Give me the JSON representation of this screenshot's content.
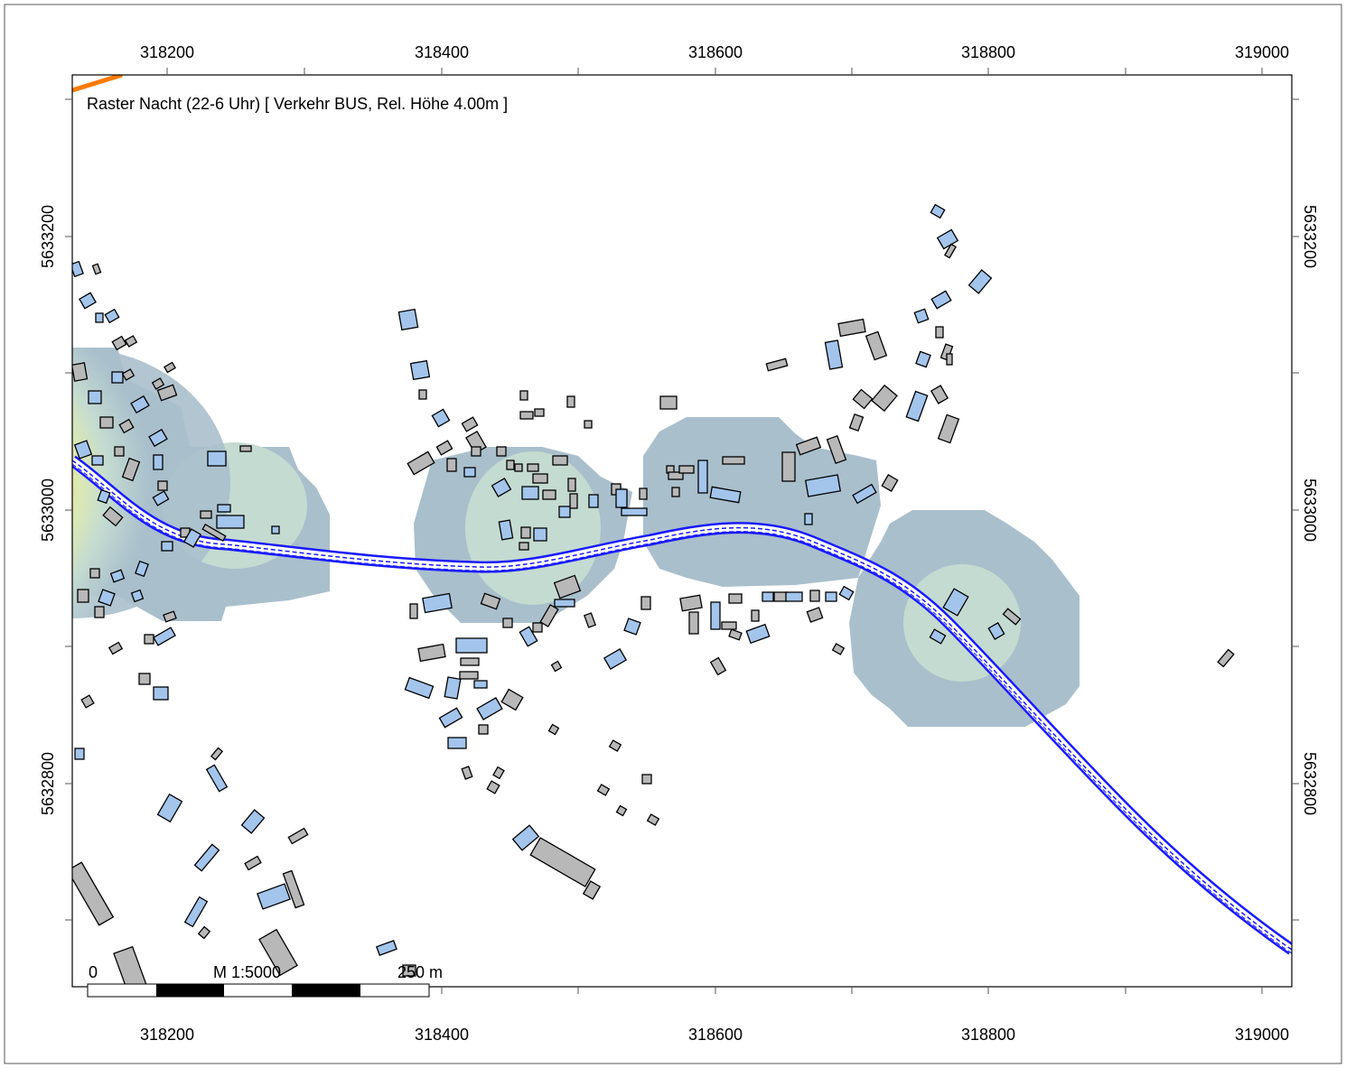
{
  "map": {
    "title": "Raster Nacht (22-6 Uhr)  [ Verkehr BUS, Rel. Höhe  4.00m ]",
    "x_ticks": [
      "318200",
      "318400",
      "318600",
      "318800",
      "319000"
    ],
    "y_ticks": [
      "5633200",
      "5633000",
      "5632800"
    ],
    "scalebar": {
      "start_label": "0",
      "scale_label": "M 1:5000",
      "end_label": "250 m"
    },
    "colors": {
      "road": "#1a1aff",
      "building_blue": "#a3c5ec",
      "building_gray": "#b8b8b8",
      "raster_low": "#a9bfcc",
      "raster_mid": "#c4dbd1",
      "raster_high": "#e6efb0",
      "raster_peak": "#6d1a4a",
      "accent_orange": "#ff7a00"
    }
  }
}
